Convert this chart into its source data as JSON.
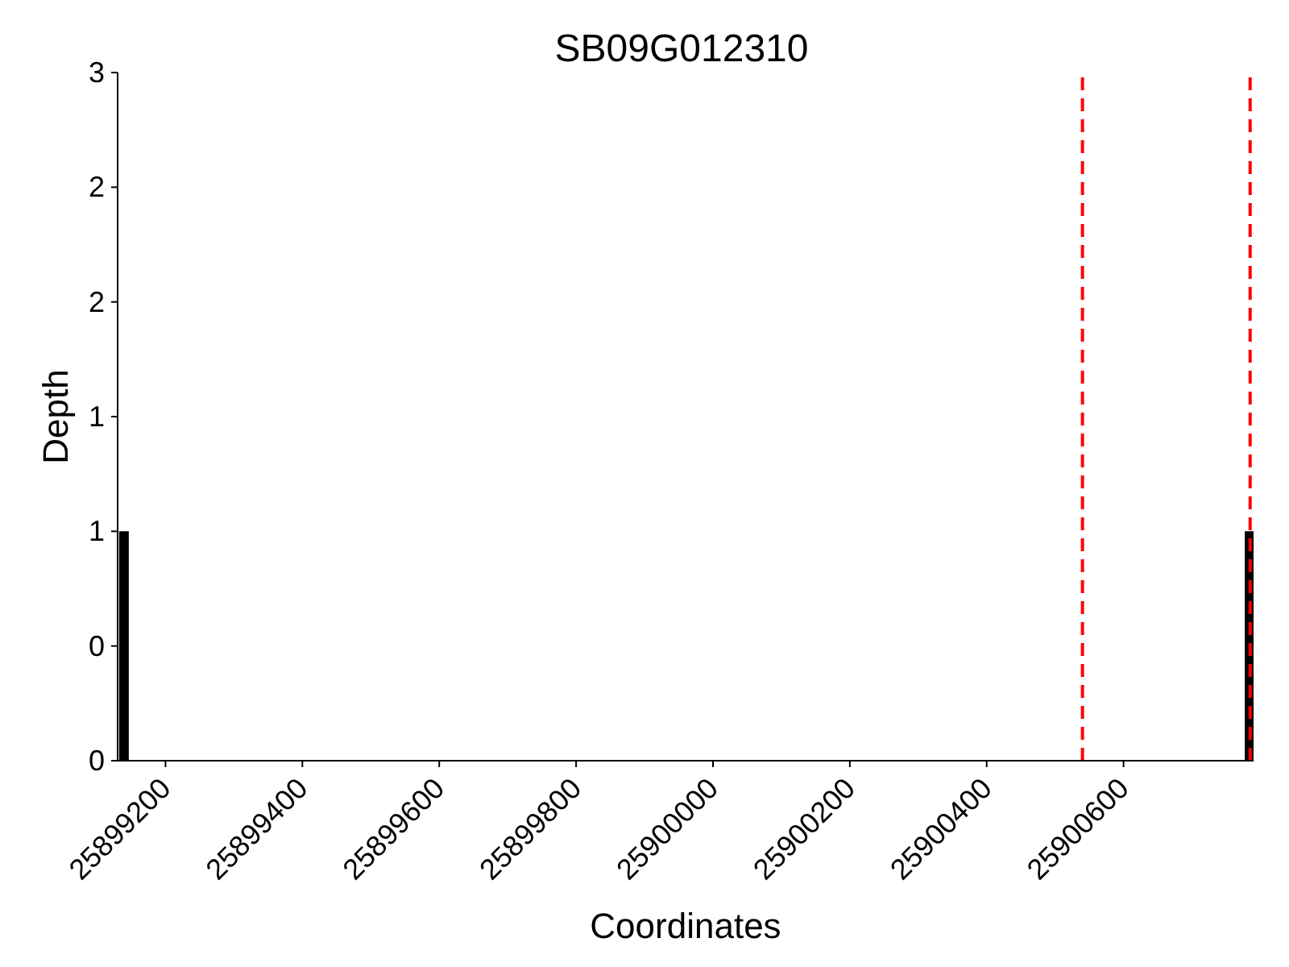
{
  "chart_data": {
    "type": "bar",
    "title": "SB09G012310",
    "xlabel": "Coordinates",
    "ylabel": "Depth",
    "x": [
      25899140,
      25900785
    ],
    "values": [
      1,
      1
    ],
    "color": "#000000",
    "xlim": [
      25899130,
      25900790
    ],
    "xticks": [
      25899200,
      25899400,
      25899600,
      25899800,
      25900000,
      25900200,
      25900400,
      25900600
    ],
    "ylim": [
      0,
      3
    ],
    "yticks": [
      0,
      {
        "value": 0.5,
        "label": "0"
      },
      1,
      {
        "value": 1.5,
        "label": "1"
      },
      2,
      {
        "value": 2.5,
        "label": "2"
      },
      3
    ],
    "ref_lines": [
      {
        "axis": "x",
        "value": 25900540,
        "color": "#ff0000",
        "line_style": "dashed"
      },
      {
        "axis": "x",
        "value": 25900785,
        "color": "#ff0000",
        "line_style": "dashed"
      }
    ]
  }
}
